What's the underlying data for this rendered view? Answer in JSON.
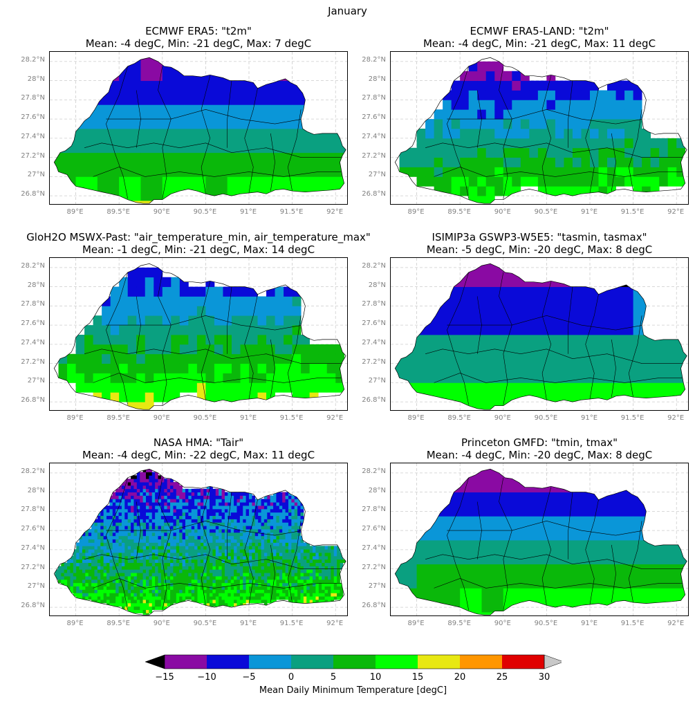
{
  "figure": {
    "suptitle": "January",
    "colorbar_label": "Mean Daily Minimum Temperature [degC]"
  },
  "colorbar": {
    "boundaries": [
      -15,
      -10,
      -5,
      0,
      5,
      10,
      15,
      20,
      25,
      30
    ],
    "tick_labels": [
      "−15",
      "−10",
      "−5",
      "0",
      "5",
      "10",
      "15",
      "20",
      "25",
      "30"
    ],
    "colors": [
      "#8a0aa3",
      "#0a0ad8",
      "#0a96d8",
      "#0aa080",
      "#0ab80a",
      "#00ff00",
      "#e8e812",
      "#ff9600",
      "#e00000"
    ],
    "under_color": "#000000",
    "over_color": "#c8c8c8"
  },
  "axes": {
    "lon_range": [
      88.7,
      92.15
    ],
    "lat_range": [
      26.7,
      28.3
    ],
    "lat_ticks": [
      26.8,
      27.0,
      27.2,
      27.4,
      27.6,
      27.8,
      28.0,
      28.2
    ],
    "lat_tick_labels": [
      "26.8°N",
      "27°N",
      "27.2°N",
      "27.4°N",
      "27.6°N",
      "27.8°N",
      "28°N",
      "28.2°N"
    ],
    "lon_ticks": [
      89.0,
      89.5,
      90.0,
      90.5,
      91.0,
      91.5,
      92.0
    ],
    "lon_tick_labels": [
      "89°E",
      "89.5°E",
      "90°E",
      "90.5°E",
      "91°E",
      "91.5°E",
      "92°E"
    ],
    "grid": true
  },
  "panels": [
    {
      "title1": "ECMWF ERA5: \"t2m\"",
      "title2": "Mean: -4 degC, Min: -21 degC, Max: 7 degC",
      "resolution_deg": 0.25
    },
    {
      "title1": "ECMWF ERA5-LAND: \"t2m\"",
      "title2": "Mean: -4 degC, Min: -21 degC, Max: 11 degC",
      "resolution_deg": 0.1
    },
    {
      "title1": "GloH2O MSWX-Past: \"air_temperature_min, air_temperature_max\"",
      "title2": "Mean: -1 degC, Min: -21 degC, Max: 14 degC",
      "resolution_deg": 0.1
    },
    {
      "title1": "ISIMIP3a GSWP3-W5E5: \"tasmin, tasmax\"",
      "title2": "Mean: -5 degC, Min: -20 degC, Max: 8 degC",
      "resolution_deg": 0.5
    },
    {
      "title1": "NASA HMA: \"Tair\"",
      "title2": "Mean: -4 degC, Min: -22 degC, Max: 11 degC",
      "resolution_deg": 0.02
    },
    {
      "title1": "Princeton GMFD: \"tmin, tmax\"",
      "title2": "Mean: -4 degC, Min: -20 degC, Max: 8 degC",
      "resolution_deg": 0.25
    }
  ]
}
